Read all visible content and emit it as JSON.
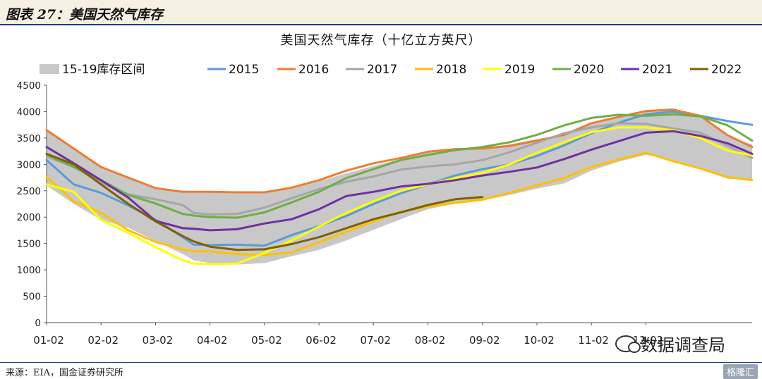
{
  "header": {
    "title": "图表 27：美国天然气库存"
  },
  "footer": {
    "source": "来源：EIA，国金证券研究所",
    "brand": "格隆汇"
  },
  "watermark": {
    "text": "数据调查局",
    "icon": "wechat-icon"
  },
  "chart_data": {
    "type": "line",
    "title": "美国天然气库存（十亿立方英尺）",
    "xlabel": "",
    "ylabel": "",
    "ylim": [
      0,
      4500
    ],
    "yticks": [
      0,
      500,
      1000,
      1500,
      2000,
      2500,
      3000,
      3500,
      4000,
      4500
    ],
    "xticks": [
      "01-02",
      "02-02",
      "03-02",
      "04-02",
      "05-02",
      "06-02",
      "07-02",
      "08-02",
      "09-02",
      "10-02",
      "11-02",
      "12-02"
    ],
    "legend_position": "top",
    "grid": false,
    "band": {
      "name": "15-19库存区间",
      "color": "#c8c8c8",
      "x": [
        0,
        0.5,
        1,
        1.5,
        2,
        2.5,
        2.7,
        3,
        3.5,
        4,
        4.5,
        5,
        5.5,
        6,
        6.5,
        7,
        7.5,
        8,
        8.5,
        9,
        9.5,
        10,
        10.5,
        11,
        11.5,
        12,
        12.5,
        12.95
      ],
      "upper": [
        3650,
        3300,
        2950,
        2750,
        2550,
        2500,
        2480,
        2470,
        2460,
        2470,
        2540,
        2680,
        2830,
        2970,
        3100,
        3230,
        3280,
        3310,
        3380,
        3480,
        3560,
        3760,
        3900,
        4020,
        4030,
        3930,
        3520,
        3380
      ],
      "lower": [
        2600,
        2250,
        1950,
        1800,
        1550,
        1300,
        1180,
        1130,
        1100,
        1130,
        1260,
        1380,
        1560,
        1760,
        1960,
        2150,
        2260,
        2320,
        2420,
        2540,
        2640,
        2880,
        3050,
        3180,
        3080,
        2900,
        2730,
        2700
      ]
    },
    "series": [
      {
        "name": "2015",
        "color": "#5b9bd5",
        "x": [
          0,
          0.5,
          1,
          1.5,
          2,
          2.5,
          2.7,
          3,
          3.5,
          4,
          4.5,
          5,
          5.5,
          6,
          6.5,
          7,
          7.5,
          8,
          8.5,
          9,
          9.5,
          10,
          10.5,
          11,
          11.5,
          12,
          12.5,
          12.95
        ],
        "y": [
          3080,
          2620,
          2460,
          2220,
          1950,
          1620,
          1480,
          1470,
          1480,
          1460,
          1660,
          1830,
          2020,
          2250,
          2450,
          2620,
          2790,
          2910,
          3000,
          3160,
          3360,
          3590,
          3790,
          3950,
          4000,
          3920,
          3820,
          3750
        ]
      },
      {
        "name": "2016",
        "color": "#ed7d31",
        "x": [
          0,
          0.5,
          1,
          1.5,
          2,
          2.5,
          2.7,
          3,
          3.5,
          4,
          4.5,
          5,
          5.5,
          6,
          6.5,
          7,
          7.5,
          8,
          8.5,
          9,
          9.5,
          10,
          10.5,
          11,
          11.5,
          12,
          12.5,
          12.95
        ],
        "y": [
          3650,
          3300,
          2950,
          2750,
          2550,
          2480,
          2480,
          2480,
          2470,
          2470,
          2560,
          2700,
          2880,
          3020,
          3120,
          3240,
          3290,
          3300,
          3350,
          3450,
          3560,
          3780,
          3900,
          4010,
          4040,
          3920,
          3550,
          3330
        ]
      },
      {
        "name": "2017",
        "color": "#a5a5a5",
        "x": [
          0,
          0.5,
          1,
          1.5,
          2,
          2.5,
          2.7,
          3,
          3.5,
          4,
          4.5,
          5,
          5.5,
          6,
          6.5,
          7,
          7.5,
          8,
          8.5,
          9,
          9.5,
          10,
          10.5,
          11,
          11.5,
          12,
          12.5,
          12.95
        ],
        "y": [
          3150,
          2950,
          2650,
          2430,
          2340,
          2230,
          2080,
          2050,
          2060,
          2180,
          2360,
          2530,
          2670,
          2770,
          2900,
          2960,
          3000,
          3080,
          3230,
          3410,
          3590,
          3700,
          3780,
          3770,
          3680,
          3600,
          3350,
          3120
        ]
      },
      {
        "name": "2018",
        "color": "#ffc000",
        "x": [
          0,
          0.5,
          1,
          1.5,
          2,
          2.5,
          2.7,
          3,
          3.5,
          4,
          4.5,
          5,
          5.5,
          6,
          6.5,
          7,
          7.5,
          8,
          8.5,
          9,
          9.5,
          10,
          10.5,
          11,
          11.5,
          12,
          12.5,
          12.95
        ],
        "y": [
          2760,
          2300,
          2080,
          1750,
          1530,
          1390,
          1350,
          1350,
          1300,
          1280,
          1330,
          1520,
          1720,
          1920,
          2100,
          2200,
          2270,
          2330,
          2460,
          2600,
          2740,
          2950,
          3090,
          3220,
          3060,
          2920,
          2760,
          2700
        ]
      },
      {
        "name": "2019",
        "color": "#ffff00",
        "x": [
          0,
          0.5,
          1,
          1.5,
          2,
          2.5,
          2.7,
          3,
          3.5,
          4,
          4.5,
          5,
          5.5,
          6,
          6.5,
          7,
          7.5,
          8,
          8.5,
          9,
          9.5,
          10,
          10.5,
          11,
          11.5,
          12,
          12.5,
          12.95
        ],
        "y": [
          2620,
          2480,
          1950,
          1700,
          1430,
          1180,
          1120,
          1110,
          1120,
          1320,
          1560,
          1820,
          2080,
          2300,
          2500,
          2620,
          2740,
          2840,
          3000,
          3220,
          3420,
          3610,
          3700,
          3700,
          3650,
          3500,
          3260,
          3170
        ]
      },
      {
        "name": "2020",
        "color": "#70ad47",
        "x": [
          0,
          0.5,
          1,
          1.5,
          2,
          2.5,
          2.7,
          3,
          3.5,
          4,
          4.5,
          5,
          5.5,
          6,
          6.5,
          7,
          7.5,
          8,
          8.5,
          9,
          9.5,
          10,
          10.5,
          11,
          11.5,
          12,
          12.5,
          12.95
        ],
        "y": [
          3190,
          2950,
          2700,
          2420,
          2260,
          2060,
          2030,
          2000,
          1990,
          2090,
          2280,
          2480,
          2740,
          2910,
          3080,
          3180,
          3270,
          3330,
          3420,
          3560,
          3740,
          3880,
          3940,
          3920,
          3950,
          3910,
          3740,
          3450
        ]
      },
      {
        "name": "2021",
        "color": "#7030a0",
        "x": [
          0,
          0.5,
          1,
          1.5,
          2,
          2.5,
          2.7,
          3,
          3.5,
          4,
          4.5,
          5,
          5.5,
          6,
          6.5,
          7,
          7.5,
          8,
          8.5,
          9,
          9.5,
          10,
          10.5,
          11,
          11.5,
          12,
          12.5,
          12.95
        ],
        "y": [
          3330,
          3020,
          2700,
          2370,
          1930,
          1790,
          1780,
          1750,
          1770,
          1880,
          1960,
          2150,
          2400,
          2480,
          2580,
          2630,
          2700,
          2790,
          2860,
          2940,
          3100,
          3280,
          3440,
          3600,
          3630,
          3540,
          3400,
          3200
        ]
      },
      {
        "name": "2022",
        "color": "#7f6000",
        "x": [
          0,
          0.5,
          1,
          1.5,
          2,
          2.5,
          2.7,
          3,
          3.5,
          4,
          4.5,
          5,
          5.5,
          6,
          6.5,
          7,
          7.5,
          8
        ],
        "y": [
          3200,
          3000,
          2620,
          2250,
          1920,
          1640,
          1540,
          1440,
          1380,
          1390,
          1490,
          1620,
          1790,
          1960,
          2090,
          2230,
          2340,
          2380
        ]
      }
    ]
  }
}
